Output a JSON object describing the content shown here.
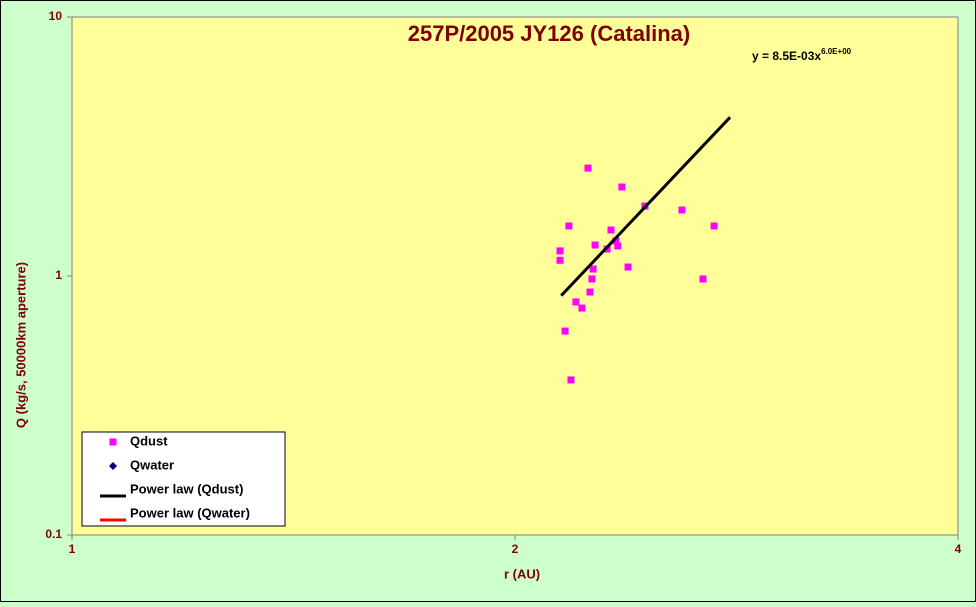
{
  "chart_data": {
    "type": "scatter",
    "title": "257P/2005 JY126 (Catalina)",
    "equation": "y = 8.5E-03x",
    "equation_exponent": "6.0E+00",
    "x_label": "r (AU)",
    "y_label": "Q (kg/s, 50000km aperture)",
    "log_x": true,
    "log_y": true,
    "xlim": [
      1,
      4
    ],
    "xticks": [
      1,
      2,
      4
    ],
    "ylim": [
      0.1,
      10
    ],
    "yticks": [
      0.1,
      1,
      10
    ],
    "plot_background": "#ffff99",
    "legend": "bottom-left",
    "series": [
      {
        "name": "Qdust",
        "color": "#ff00ff",
        "style": "square",
        "x": [
          2.146,
          2.146,
          2.176,
          2.163,
          2.183,
          2.2,
          2.221,
          2.242,
          2.249,
          2.256,
          2.26,
          2.267,
          2.31,
          2.324,
          2.342,
          2.349,
          2.364,
          2.387,
          2.451,
          2.597,
          2.684,
          2.731
        ],
        "values": [
          1.25,
          1.15,
          1.56,
          0.613,
          0.397,
          0.794,
          0.752,
          2.61,
          0.867,
          0.974,
          1.064,
          1.317,
          1.271,
          1.505,
          1.365,
          1.306,
          2.206,
          1.083,
          1.862,
          1.798,
          0.974,
          1.56
        ]
      },
      {
        "name": "Qwater",
        "color": "#000080",
        "style": "diamond",
        "x": [],
        "values": []
      },
      {
        "name": "Power law (Qdust)",
        "color": "#000000",
        "style": "line",
        "x": [
          2.15,
          2.8
        ],
        "values": [
          0.84,
          4.1
        ]
      },
      {
        "name": "Power law (Qwater)",
        "color": "#ff0000",
        "style": "line",
        "x": [],
        "values": []
      }
    ]
  }
}
